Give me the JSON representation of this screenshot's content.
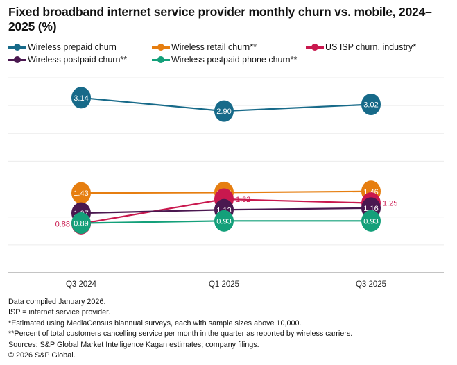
{
  "chart_data": {
    "type": "line",
    "title": "Fixed broadband internet service provider monthly churn vs. mobile, 2024–2025 (%)",
    "categories": [
      "Q3 2024",
      "Q1 2025",
      "Q3 2025"
    ],
    "ylim": [
      0,
      3.5
    ],
    "grid": true,
    "legend_position": "top",
    "series": [
      {
        "name": "Wireless prepaid churn",
        "color": "#176a89",
        "values": [
          3.14,
          2.9,
          3.02
        ],
        "labels": [
          "3.14",
          "2.90",
          "3.02"
        ]
      },
      {
        "name": "Wireless retail churn**",
        "color": "#e67e10",
        "values": [
          1.43,
          1.44,
          1.46
        ],
        "labels": [
          "1.43",
          "1.44",
          "1.46"
        ]
      },
      {
        "name": "US ISP churn, industry*",
        "color": "#c9184e",
        "values": [
          0.88,
          1.32,
          1.25
        ],
        "labels": [
          "0.88",
          "1.32",
          "1.25"
        ]
      },
      {
        "name": "Wireless postpaid churn**",
        "color": "#4a1850",
        "values": [
          1.07,
          1.13,
          1.16
        ],
        "labels": [
          "1.07",
          "1.13",
          "1.16"
        ]
      },
      {
        "name": "Wireless postpaid phone churn**",
        "color": "#14a07a",
        "values": [
          0.89,
          0.93,
          0.93
        ],
        "labels": [
          "0.89",
          "0.93",
          "0.93"
        ]
      }
    ]
  },
  "footer": [
    "Data compiled January 2026.",
    "ISP = internet service provider.",
    "*Estimated using MediaCensus biannual surveys, each with sample sizes above 10,000.",
    "**Percent of total customers cancelling service per month in the quarter as reported by wireless carriers.",
    "Sources: S&P Global Market Intelligence Kagan estimates; company filings.",
    "© 2026 S&P Global."
  ]
}
